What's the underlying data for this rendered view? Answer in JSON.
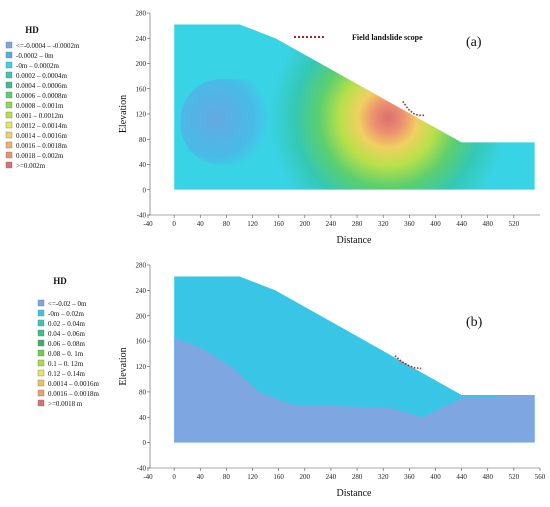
{
  "chart_data": [
    {
      "type": "heatmap",
      "panel_label": "(a)",
      "xlabel": "Distance",
      "ylabel": "Elevation",
      "xlim": [
        -40,
        560
      ],
      "ylim": [
        -40,
        280
      ],
      "x_ticks": [
        "-40",
        "0",
        "40",
        "80",
        "120",
        "160",
        "200",
        "240",
        "280",
        "320",
        "360",
        "400",
        "440",
        "480",
        "520"
      ],
      "y_ticks": [
        "-40",
        "0",
        "40",
        "80",
        "120",
        "160",
        "200",
        "240",
        "280"
      ],
      "slope_profile": {
        "x": [
          0,
          0,
          100,
          155,
          440,
          488,
          552,
          552,
          0
        ],
        "y": [
          0,
          262,
          262,
          240,
          75,
          75,
          75,
          0,
          0
        ]
      },
      "annotation": {
        "text": "Field landslide scope",
        "line_color": "#b22222",
        "scarp_x": [
          350,
          358,
          366,
          374,
          385
        ],
        "scarp_y": [
          140,
          128,
          121,
          118,
          118
        ]
      },
      "legend": {
        "title": "HD",
        "entries": [
          {
            "label": "<=-0.0004 – -0.0002m",
            "color": "#7ea6e0"
          },
          {
            "label": "-0.0002 – 0m",
            "color": "#4fb0e6"
          },
          {
            "label": "-0m – 0.0002m",
            "color": "#39d3e6"
          },
          {
            "label": "0.0002 – 0.0004m",
            "color": "#34c8b4"
          },
          {
            "label": "0.0004 – 0.0006m",
            "color": "#3dbf8e"
          },
          {
            "label": "0.0006 – 0.0008m",
            "color": "#5ccf6e"
          },
          {
            "label": "0.0008 – 0.001m",
            "color": "#8ed94f"
          },
          {
            "label": "0.001 – 0.0012m",
            "color": "#b8e04a"
          },
          {
            "label": "0.0012 – 0.0014m",
            "color": "#e2e65a"
          },
          {
            "label": "0.0014 – 0.0016m",
            "color": "#f0d060"
          },
          {
            "label": "0.0016 – 0.0018m",
            "color": "#f1b06a"
          },
          {
            "label": "0.0018 – 0.002m",
            "color": "#ec9070"
          },
          {
            "label": ">=0.002m",
            "color": "#dd6f6f"
          }
        ]
      }
    },
    {
      "type": "heatmap",
      "panel_label": "(b)",
      "xlabel": "Distance",
      "ylabel": "Elevation",
      "xlim": [
        -40,
        560
      ],
      "ylim": [
        -40,
        280
      ],
      "x_ticks": [
        "-40",
        "0",
        "40",
        "80",
        "120",
        "160",
        "200",
        "240",
        "280",
        "320",
        "360",
        "400",
        "440",
        "480",
        "520",
        "560"
      ],
      "y_ticks": [
        "-40",
        "0",
        "40",
        "80",
        "120",
        "160",
        "200",
        "240",
        "280"
      ],
      "slope_profile": {
        "x": [
          0,
          0,
          100,
          155,
          440,
          488,
          552,
          552,
          0
        ],
        "y": [
          0,
          262,
          262,
          240,
          75,
          75,
          75,
          0,
          0
        ]
      },
      "annotation": {
        "line_color": "#b22222",
        "scarp_x": [
          338,
          348,
          358,
          368,
          378
        ],
        "scarp_y": [
          137,
          128,
          122,
          118,
          117
        ]
      },
      "legend": {
        "title": "HD",
        "entries": [
          {
            "label": "<=-0.02 – 0m",
            "color": "#7ea6e0"
          },
          {
            "label": "-0m – 0.02m",
            "color": "#39c6e6"
          },
          {
            "label": "0.02 – 0.04m",
            "color": "#36c9b8"
          },
          {
            "label": "0.04 – 0.06m",
            "color": "#3dbf8e"
          },
          {
            "label": "0.06 – 0.08m",
            "color": "#3fae66"
          },
          {
            "label": "0.08 – 0. 1m",
            "color": "#6fcf4f"
          },
          {
            "label": "0.1 – 0. 12m",
            "color": "#a8dd4a"
          },
          {
            "label": "0.12 – 0.14m",
            "color": "#e2e65a"
          },
          {
            "label": "0.0014 – 0.0016m",
            "color": "#f0c060"
          },
          {
            "label": "0.0016 – 0.0018m",
            "color": "#f1a06a"
          },
          {
            "label": ">=0.0018 m",
            "color": "#dd6f6f"
          }
        ]
      }
    }
  ]
}
